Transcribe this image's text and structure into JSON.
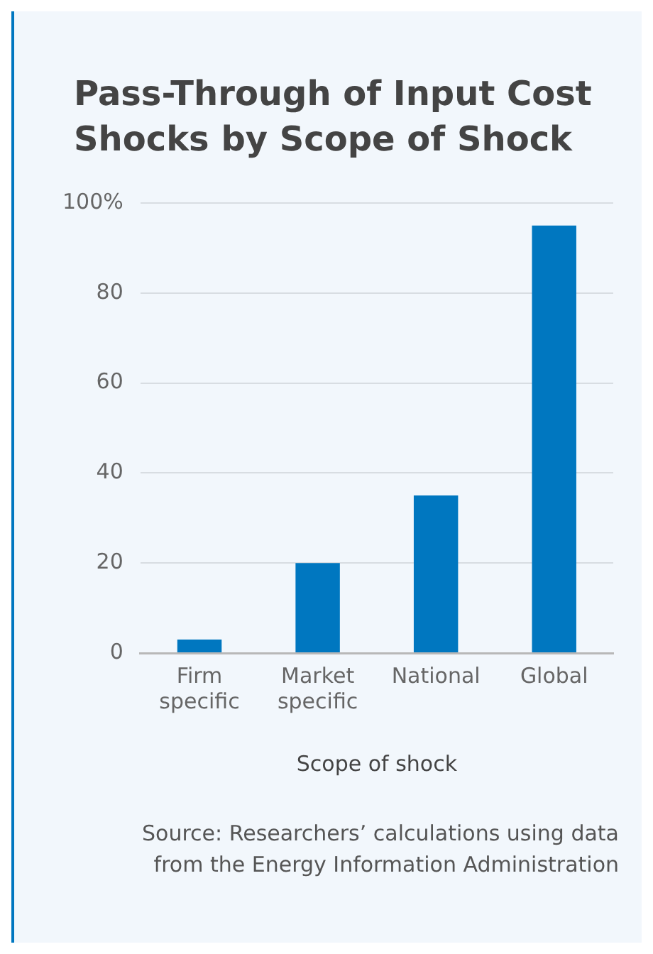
{
  "chart_data": {
    "type": "bar",
    "title": "Pass-Through of Input Cost Shocks by Scope of Shock",
    "xlabel": "Scope of shock",
    "categories": [
      "Firm specific",
      "Market specific",
      "National",
      "Global"
    ],
    "values": [
      3,
      20,
      35,
      95
    ],
    "color": "#0077c0",
    "ylim": [
      0,
      100
    ],
    "yticks": [
      0,
      20,
      40,
      60,
      80,
      {
        "value": 100,
        "label": "100%"
      }
    ],
    "grid": "y",
    "annotations": [
      "Source: Researchers’ calculations using data from the Energy Information Administration"
    ]
  }
}
